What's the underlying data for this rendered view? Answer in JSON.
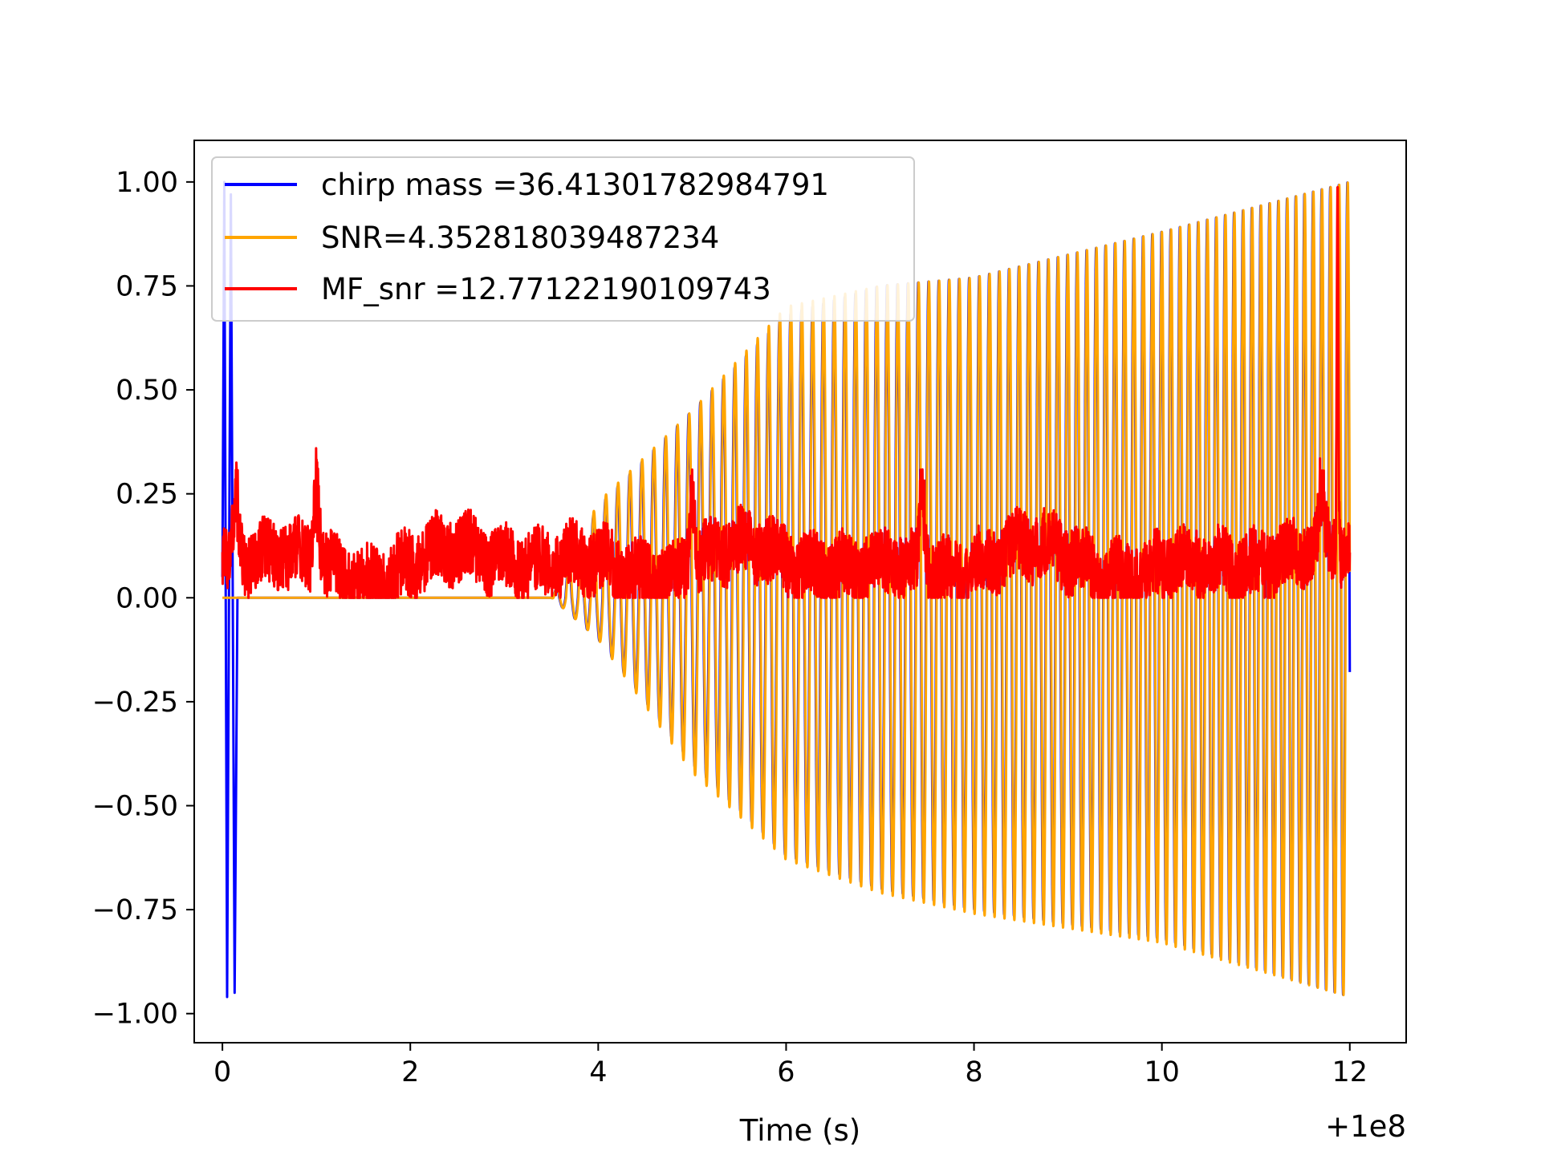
{
  "chart_data": {
    "type": "line",
    "title": "",
    "xlabel": "Time (s)",
    "ylabel": "",
    "x_offset_label": "+1e8",
    "xlim": [
      -0.3,
      12.6
    ],
    "ylim": [
      -1.07,
      1.1
    ],
    "x_ticks": [
      {
        "value": 0,
        "label": "0"
      },
      {
        "value": 2,
        "label": "2"
      },
      {
        "value": 4,
        "label": "4"
      },
      {
        "value": 6,
        "label": "6"
      },
      {
        "value": 8,
        "label": "8"
      },
      {
        "value": 10,
        "label": "10"
      },
      {
        "value": 12,
        "label": "12"
      }
    ],
    "y_ticks": [
      {
        "value": 1.0,
        "label": "1.00"
      },
      {
        "value": 0.75,
        "label": "0.75"
      },
      {
        "value": 0.5,
        "label": "0.50"
      },
      {
        "value": 0.25,
        "label": "0.25"
      },
      {
        "value": 0.0,
        "label": "0.00"
      },
      {
        "value": -0.25,
        "label": "−0.25"
      },
      {
        "value": -0.5,
        "label": "−0.50"
      },
      {
        "value": -0.75,
        "label": "−0.75"
      },
      {
        "value": -1.0,
        "label": "−1.00"
      }
    ],
    "grid": false,
    "legend_position": "top-left",
    "series": [
      {
        "name": "chirp mass =36.41301782984791",
        "color": "#0000ff",
        "envelope_max": [
          [
            0,
            1.0
          ],
          [
            0.12,
            0.97
          ],
          [
            0.15,
            0.0
          ],
          [
            3.5,
            0.0
          ],
          [
            4.0,
            0.22
          ],
          [
            5.0,
            0.45
          ],
          [
            6.0,
            0.68
          ],
          [
            7.0,
            0.75
          ],
          [
            8.0,
            0.77
          ],
          [
            10.0,
            0.88
          ],
          [
            12.0,
            1.0
          ]
        ],
        "envelope_min": [
          [
            0,
            -0.96
          ],
          [
            0.12,
            -0.95
          ],
          [
            0.15,
            0.0
          ],
          [
            3.5,
            0.0
          ],
          [
            4.0,
            -0.1
          ],
          [
            5.0,
            -0.4
          ],
          [
            6.0,
            -0.62
          ],
          [
            7.0,
            -0.7
          ],
          [
            8.0,
            -0.75
          ],
          [
            10.0,
            -0.82
          ],
          [
            12.0,
            -0.96
          ]
        ]
      },
      {
        "name": "SNR=4.352818039487234",
        "color": "#ffa500",
        "envelope_max": [
          [
            0,
            0.0
          ],
          [
            3.5,
            0.0
          ],
          [
            4.0,
            0.23
          ],
          [
            5.0,
            0.45
          ],
          [
            6.0,
            0.7
          ],
          [
            7.0,
            0.75
          ],
          [
            8.0,
            0.77
          ],
          [
            10.0,
            0.88
          ],
          [
            12.0,
            1.0
          ]
        ],
        "envelope_min": [
          [
            0,
            0.0
          ],
          [
            3.5,
            0.0
          ],
          [
            4.0,
            -0.1
          ],
          [
            5.0,
            -0.42
          ],
          [
            6.0,
            -0.63
          ],
          [
            7.0,
            -0.71
          ],
          [
            8.0,
            -0.76
          ],
          [
            10.0,
            -0.83
          ],
          [
            12.0,
            -0.96
          ]
        ]
      },
      {
        "name": "MF_snr =12.77122190109743",
        "color": "#ff0000",
        "x_range": [
          0,
          12.0
        ],
        "y_range": [
          0.0,
          1.0
        ],
        "typical_range": [
          0.02,
          0.25
        ],
        "peak": [
          11.87,
          1.0
        ]
      }
    ]
  }
}
